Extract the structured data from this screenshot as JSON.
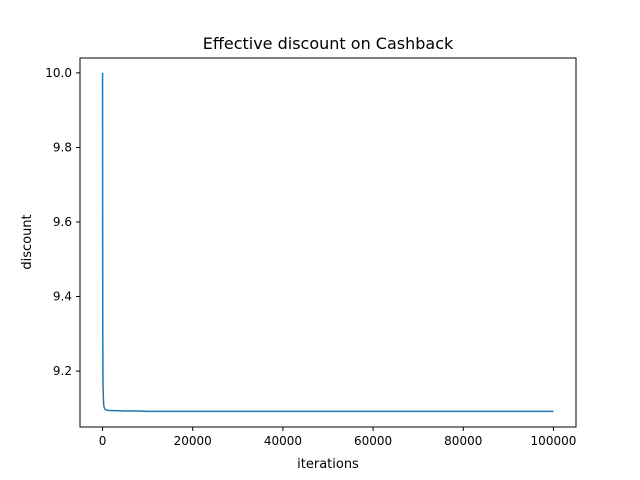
{
  "chart_data": {
    "type": "line",
    "title": "Effective discount on Cashback",
    "xlabel": "iterations",
    "ylabel": "discount",
    "xlim": [
      -5000,
      105000
    ],
    "ylim": [
      9.05,
      10.04
    ],
    "x_ticks": [
      0,
      20000,
      40000,
      60000,
      80000,
      100000
    ],
    "x_tick_labels": [
      "0",
      "20000",
      "40000",
      "60000",
      "80000",
      "100000"
    ],
    "y_ticks": [
      9.2,
      9.4,
      9.6,
      9.8,
      10.0
    ],
    "y_tick_labels": [
      "9.2",
      "9.4",
      "9.6",
      "9.8",
      "10.0"
    ],
    "grid": false,
    "series": [
      {
        "color": "#1f77b4",
        "x": [
          0,
          20,
          50,
          100,
          200,
          300,
          500,
          800,
          1000,
          2000,
          3000,
          5000,
          8000,
          10000,
          20000,
          40000,
          60000,
          80000,
          100000
        ],
        "y": [
          10.0,
          9.6,
          9.3,
          9.17,
          9.12,
          9.105,
          9.098,
          9.096,
          9.095,
          9.094,
          9.094,
          9.093,
          9.093,
          9.092,
          9.092,
          9.092,
          9.092,
          9.092,
          9.092
        ]
      }
    ]
  }
}
